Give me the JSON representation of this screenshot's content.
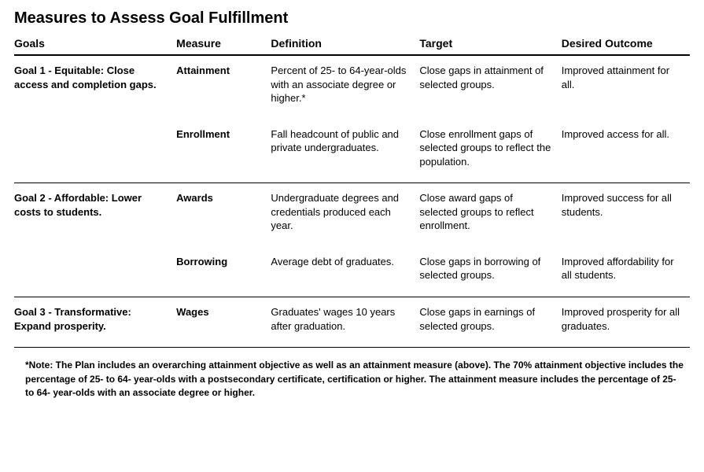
{
  "title": "Measures to Assess Goal Fulfillment",
  "columns": {
    "goals": "Goals",
    "measure": "Measure",
    "definition": "Definition",
    "target": "Target",
    "outcome": "Desired Outcome"
  },
  "rows": [
    {
      "goal": "Goal 1 - Equitable: Close access and completion gaps.",
      "measure": "Attainment",
      "definition": "Percent of 25- to 64-year-olds with an associate degree or higher.*",
      "target": "Close gaps in attainment of selected groups.",
      "outcome": "Improved attainment for all."
    },
    {
      "goal": "",
      "measure": "Enrollment",
      "definition": "Fall headcount of public and private undergraduates.",
      "target": "Close enrollment gaps of selected groups to reflect the population.",
      "outcome": "Improved access for all."
    },
    {
      "goal": "Goal 2 - Affordable: Lower costs to students.",
      "measure": "Awards",
      "definition": "Undergraduate degrees and credentials produced each year.",
      "target": "Close award gaps of selected groups to reflect enrollment.",
      "outcome": "Improved success for all students."
    },
    {
      "goal": "",
      "measure": "Borrowing",
      "definition": "Average debt of graduates.",
      "target": "Close gaps in borrowing of selected groups.",
      "outcome": "Improved affordability for all students."
    },
    {
      "goal": "Goal 3 - Transformative: Expand prosperity.",
      "measure": "Wages",
      "definition": "Graduates' wages 10 years after graduation.",
      "target": "Close gaps in earnings of selected groups.",
      "outcome": "Improved prosperity for all graduates."
    }
  ],
  "footnote": "*Note: The Plan includes an overarching attainment objective as well as an attainment measure (above). The 70% attainment objective includes the percentage of 25- to 64- year-olds with a postsecondary certificate, certification or higher. The attainment measure includes the percentage of 25- to 64- year-olds with an associate degree or higher.",
  "style": {
    "type": "table",
    "background_color": "#ffffff",
    "text_color": "#000000",
    "header_border": "2px solid #000000",
    "section_border": "1px solid #000000",
    "title_fontsize": 20,
    "header_fontsize": 14,
    "body_fontsize": 13,
    "footnote_fontsize": 12,
    "column_widths_pct": [
      24,
      14,
      22,
      21,
      19
    ],
    "section_breaks_after_row_index": [
      1,
      3,
      4
    ]
  }
}
